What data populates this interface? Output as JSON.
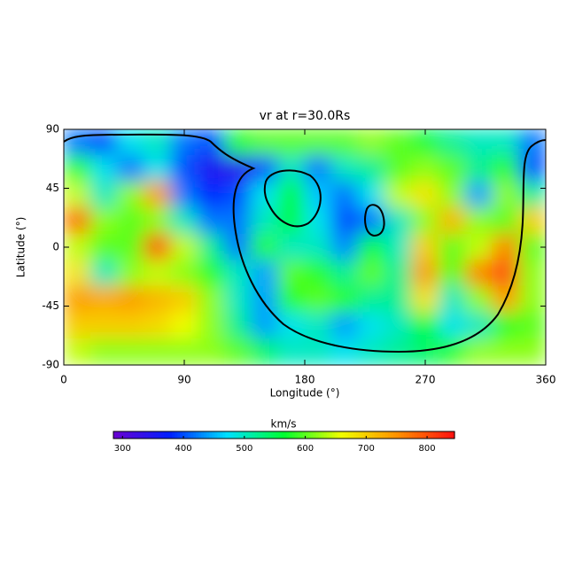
{
  "chart_data": {
    "type": "heatmap",
    "title": "vr at r=30.0Rs",
    "x_label": "Longitude (°)",
    "y_label": "Latitude (°)",
    "xlim": [
      0,
      360
    ],
    "xticks": [
      0,
      90,
      180,
      270,
      360
    ],
    "ylim": [
      -90,
      90
    ],
    "yticks": [
      90,
      45,
      0,
      -45,
      -90
    ],
    "colorbar": {
      "label": "km/s",
      "lim": [
        285,
        845
      ],
      "ticks": [
        300,
        400,
        500,
        600,
        700,
        800
      ]
    },
    "colormap": [
      "#6a00d0",
      "#0020ff",
      "#00e0ff",
      "#00ff30",
      "#f0ff00",
      "#ff9000",
      "#ff1010"
    ],
    "x": [
      10,
      30,
      50,
      70,
      90,
      110,
      130,
      150,
      170,
      190,
      210,
      230,
      250,
      270,
      290,
      310,
      330,
      350
    ],
    "y": [
      80,
      60,
      40,
      20,
      0,
      -20,
      -40,
      -60,
      -80
    ],
    "z": [
      [
        420,
        400,
        480,
        500,
        420,
        400,
        580,
        600,
        600,
        600,
        600,
        620,
        600,
        560,
        520,
        500,
        500,
        420
      ],
      [
        580,
        480,
        420,
        480,
        400,
        350,
        340,
        400,
        500,
        420,
        500,
        520,
        600,
        620,
        600,
        520,
        580,
        400
      ],
      [
        640,
        500,
        620,
        740,
        420,
        380,
        400,
        480,
        560,
        460,
        420,
        480,
        640,
        680,
        620,
        440,
        620,
        520
      ],
      [
        780,
        620,
        600,
        620,
        500,
        420,
        420,
        500,
        560,
        480,
        400,
        420,
        500,
        620,
        720,
        620,
        600,
        700
      ],
      [
        640,
        600,
        600,
        800,
        640,
        520,
        420,
        580,
        500,
        500,
        430,
        560,
        500,
        700,
        600,
        640,
        760,
        600
      ],
      [
        680,
        500,
        620,
        640,
        620,
        580,
        500,
        440,
        600,
        580,
        520,
        600,
        520,
        740,
        600,
        760,
        800,
        620
      ],
      [
        740,
        730,
        740,
        720,
        700,
        620,
        500,
        440,
        580,
        600,
        580,
        520,
        520,
        680,
        500,
        620,
        740,
        620
      ],
      [
        700,
        700,
        700,
        690,
        660,
        620,
        520,
        440,
        480,
        500,
        440,
        480,
        500,
        560,
        480,
        500,
        580,
        600
      ],
      [
        640,
        620,
        620,
        620,
        620,
        620,
        600,
        540,
        500,
        500,
        480,
        500,
        520,
        540,
        580,
        620,
        620,
        620
      ]
    ]
  }
}
